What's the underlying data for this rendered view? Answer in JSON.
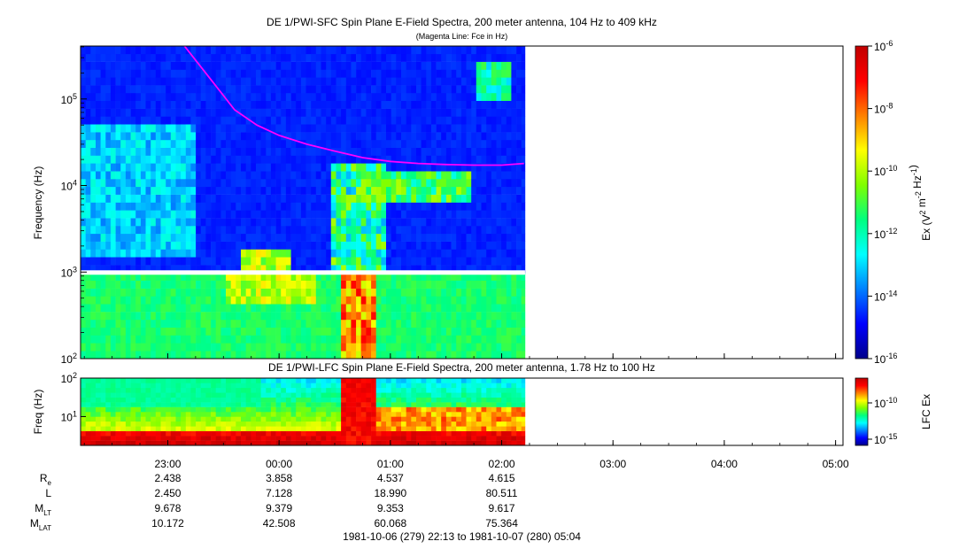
{
  "chart_data": [
    {
      "type": "heatmap",
      "panel": "sfc",
      "title": "DE 1/PWI-SFC  Spin Plane E-Field Spectra, 200 meter antenna, 104 Hz to 409 kHz",
      "subtitle": "(Magenta Line: Fce in Hz)",
      "ylabel": "Frequency (Hz)",
      "yscale": "log",
      "ylim": [
        100,
        409000
      ],
      "ytick_labels": [
        "10^2",
        "10^3",
        "10^4",
        "10^5"
      ],
      "colorbar": {
        "label": "Ex (V^2 m^-2 Hz^-1)",
        "scale": "log",
        "range": [
          1e-16,
          1e-06
        ],
        "tick_labels": [
          "10^-6",
          "10^-8",
          "10^-10",
          "10^-12",
          "10^-14",
          "10^-16"
        ],
        "colormap": [
          "#00008b",
          "#0000ff",
          "#0080ff",
          "#00ffff",
          "#00ff80",
          "#80ff00",
          "#ffff00",
          "#ff8000",
          "#ff0000",
          "#c00000"
        ]
      },
      "overlay_line": {
        "name": "Fce",
        "color": "#ff00ff",
        "x_hours": [
          -0.85,
          -0.6,
          -0.4,
          -0.2,
          0.0,
          0.25,
          0.5,
          0.75,
          1.0,
          1.25,
          1.5,
          1.75,
          2.0,
          2.2
        ],
        "y_hz": [
          409000,
          160000,
          75000,
          50000,
          38000,
          30000,
          25000,
          21000,
          19000,
          18000,
          17500,
          17200,
          17200,
          18000
        ]
      }
    },
    {
      "type": "heatmap",
      "panel": "lfc",
      "title": "DE 1/PWI-LFC  Spin Plane E-Field Spectra, 200 meter antenna, 1.78 Hz to 100 Hz",
      "ylabel": "Freq (Hz)",
      "yscale": "log",
      "ylim": [
        1.78,
        100
      ],
      "ytick_labels": [
        "10^1",
        "10^2"
      ],
      "colorbar": {
        "label": "LFC Ex",
        "scale": "log",
        "tick_labels": [
          "10^-10",
          "10^-15"
        ]
      }
    }
  ],
  "time_axis": {
    "tick_labels": [
      "23:00",
      "00:00",
      "01:00",
      "02:00",
      "03:00",
      "04:00",
      "05:00"
    ],
    "range_label": "1981-10-06 (279) 22:13 to 1981-10-07 (280) 05:04"
  },
  "ephemeris": {
    "rows": [
      {
        "label": "R",
        "sub": "e",
        "values": [
          "2.438",
          "3.858",
          "4.537",
          "4.615"
        ]
      },
      {
        "label": "L",
        "sub": "",
        "values": [
          "2.450",
          "7.128",
          "18.990",
          "80.511"
        ]
      },
      {
        "label": "M",
        "sub": "LT",
        "values": [
          "9.678",
          "9.379",
          "9.353",
          "9.617"
        ]
      },
      {
        "label": "M",
        "sub": "LAT",
        "values": [
          "10.172",
          "42.508",
          "60.068",
          "75.364"
        ]
      }
    ]
  }
}
